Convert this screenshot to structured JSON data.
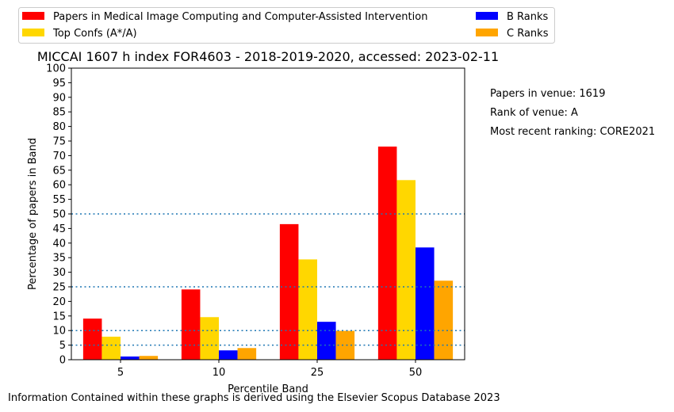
{
  "chart_data": {
    "type": "bar",
    "title": "MICCAI 1607 h index FOR4603 - 2018-2019-2020, accessed: 2023-02-11",
    "xlabel": "Percentile Band",
    "ylabel": "Percentage of papers in Band",
    "categories": [
      "5",
      "10",
      "25",
      "50"
    ],
    "ylim": [
      0,
      100
    ],
    "yticks": [
      "0",
      "5",
      "10",
      "15",
      "20",
      "25",
      "30",
      "35",
      "40",
      "45",
      "50",
      "55",
      "60",
      "65",
      "70",
      "75",
      "80",
      "85",
      "90",
      "95",
      "100"
    ],
    "series": [
      {
        "name": "Papers in Medical Image Computing and Computer-Assisted Intervention",
        "color": "#ff0000",
        "values": [
          14.1,
          24.1,
          46.5,
          73.1
        ]
      },
      {
        "name": "Top Confs (A*/A)",
        "color": "#ffd700",
        "values": [
          7.9,
          14.6,
          34.4,
          61.6
        ]
      },
      {
        "name": "B Ranks",
        "color": "#0000ff",
        "values": [
          1.1,
          3.2,
          13.0,
          38.5
        ]
      },
      {
        "name": "C Ranks",
        "color": "#ffa500",
        "values": [
          1.3,
          4.0,
          9.9,
          27.1
        ]
      }
    ],
    "reference_lines": [
      5,
      10,
      25,
      50
    ],
    "reference_line_color": "#1f77b4",
    "legend_position": "top",
    "grid": false
  },
  "notes": {
    "papers_in_venue": "Papers in venue: 1619",
    "rank_of_venue": "Rank of venue: A",
    "most_recent_ranking": "Most recent ranking: CORE2021"
  },
  "footer": "Information Contained within these graphs is derived using the Elsevier Scopus Database 2023"
}
